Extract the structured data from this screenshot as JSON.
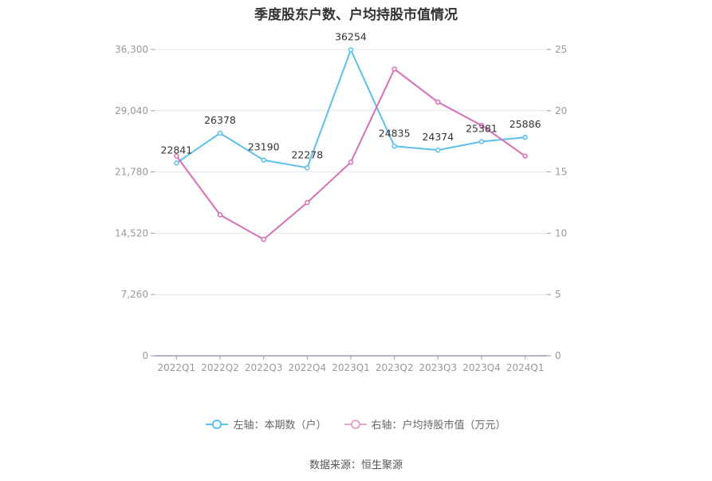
{
  "chart_data": {
    "type": "line",
    "title": "季度股东户数、户均持股市值情况",
    "categories": [
      "2022Q1",
      "2022Q2",
      "2022Q3",
      "2022Q4",
      "2023Q1",
      "2023Q2",
      "2023Q3",
      "2023Q4",
      "2024Q1"
    ],
    "left_axis": {
      "ylim": [
        0,
        36300
      ],
      "ticks": [
        "0",
        "7,260",
        "14,520",
        "21,780",
        "29,040",
        "36,300"
      ]
    },
    "right_axis": {
      "ylim": [
        0,
        25
      ],
      "ticks": [
        "0",
        "5",
        "10",
        "15",
        "20",
        "25"
      ]
    },
    "series": [
      {
        "name": "左轴：本期数（户）",
        "axis": "left",
        "color": "#5bc0eb",
        "values": [
          22841,
          26378,
          23190,
          22278,
          36254,
          24835,
          24374,
          25381,
          25886
        ],
        "labels": [
          "22841",
          "26378",
          "23190",
          "22278",
          "36254",
          "24835",
          "24374",
          "25381",
          "25886"
        ]
      },
      {
        "name": "右轴：户均持股市值（万元）",
        "axis": "right",
        "color": "#d66fb5",
        "values": [
          16.3,
          11.5,
          9.5,
          12.5,
          15.8,
          23.4,
          20.7,
          18.8,
          16.3
        ]
      }
    ],
    "legend_position": "bottom",
    "grid": true
  },
  "source": "数据来源：恒生聚源"
}
